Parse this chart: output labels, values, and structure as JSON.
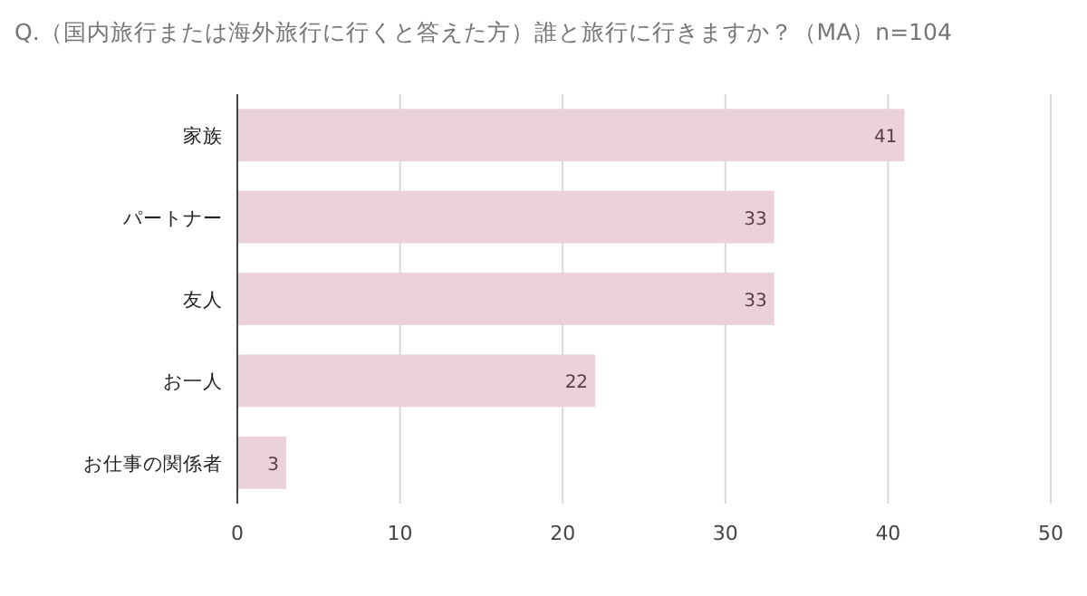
{
  "chart_data": {
    "type": "bar",
    "orientation": "horizontal",
    "title": "Q.（国内旅行または海外旅行に行くと答えた方）誰と旅行に行きますか？（MA）n=104",
    "categories": [
      "家族",
      "パートナー",
      "友人",
      "お一人",
      "お仕事の関係者"
    ],
    "values": [
      41,
      33,
      33,
      22,
      3
    ],
    "color": "#ead1dc",
    "xlim": [
      0,
      50
    ],
    "xticks": [
      0,
      10,
      20,
      30,
      40,
      50
    ],
    "grid": "x",
    "data_labels": true
  }
}
